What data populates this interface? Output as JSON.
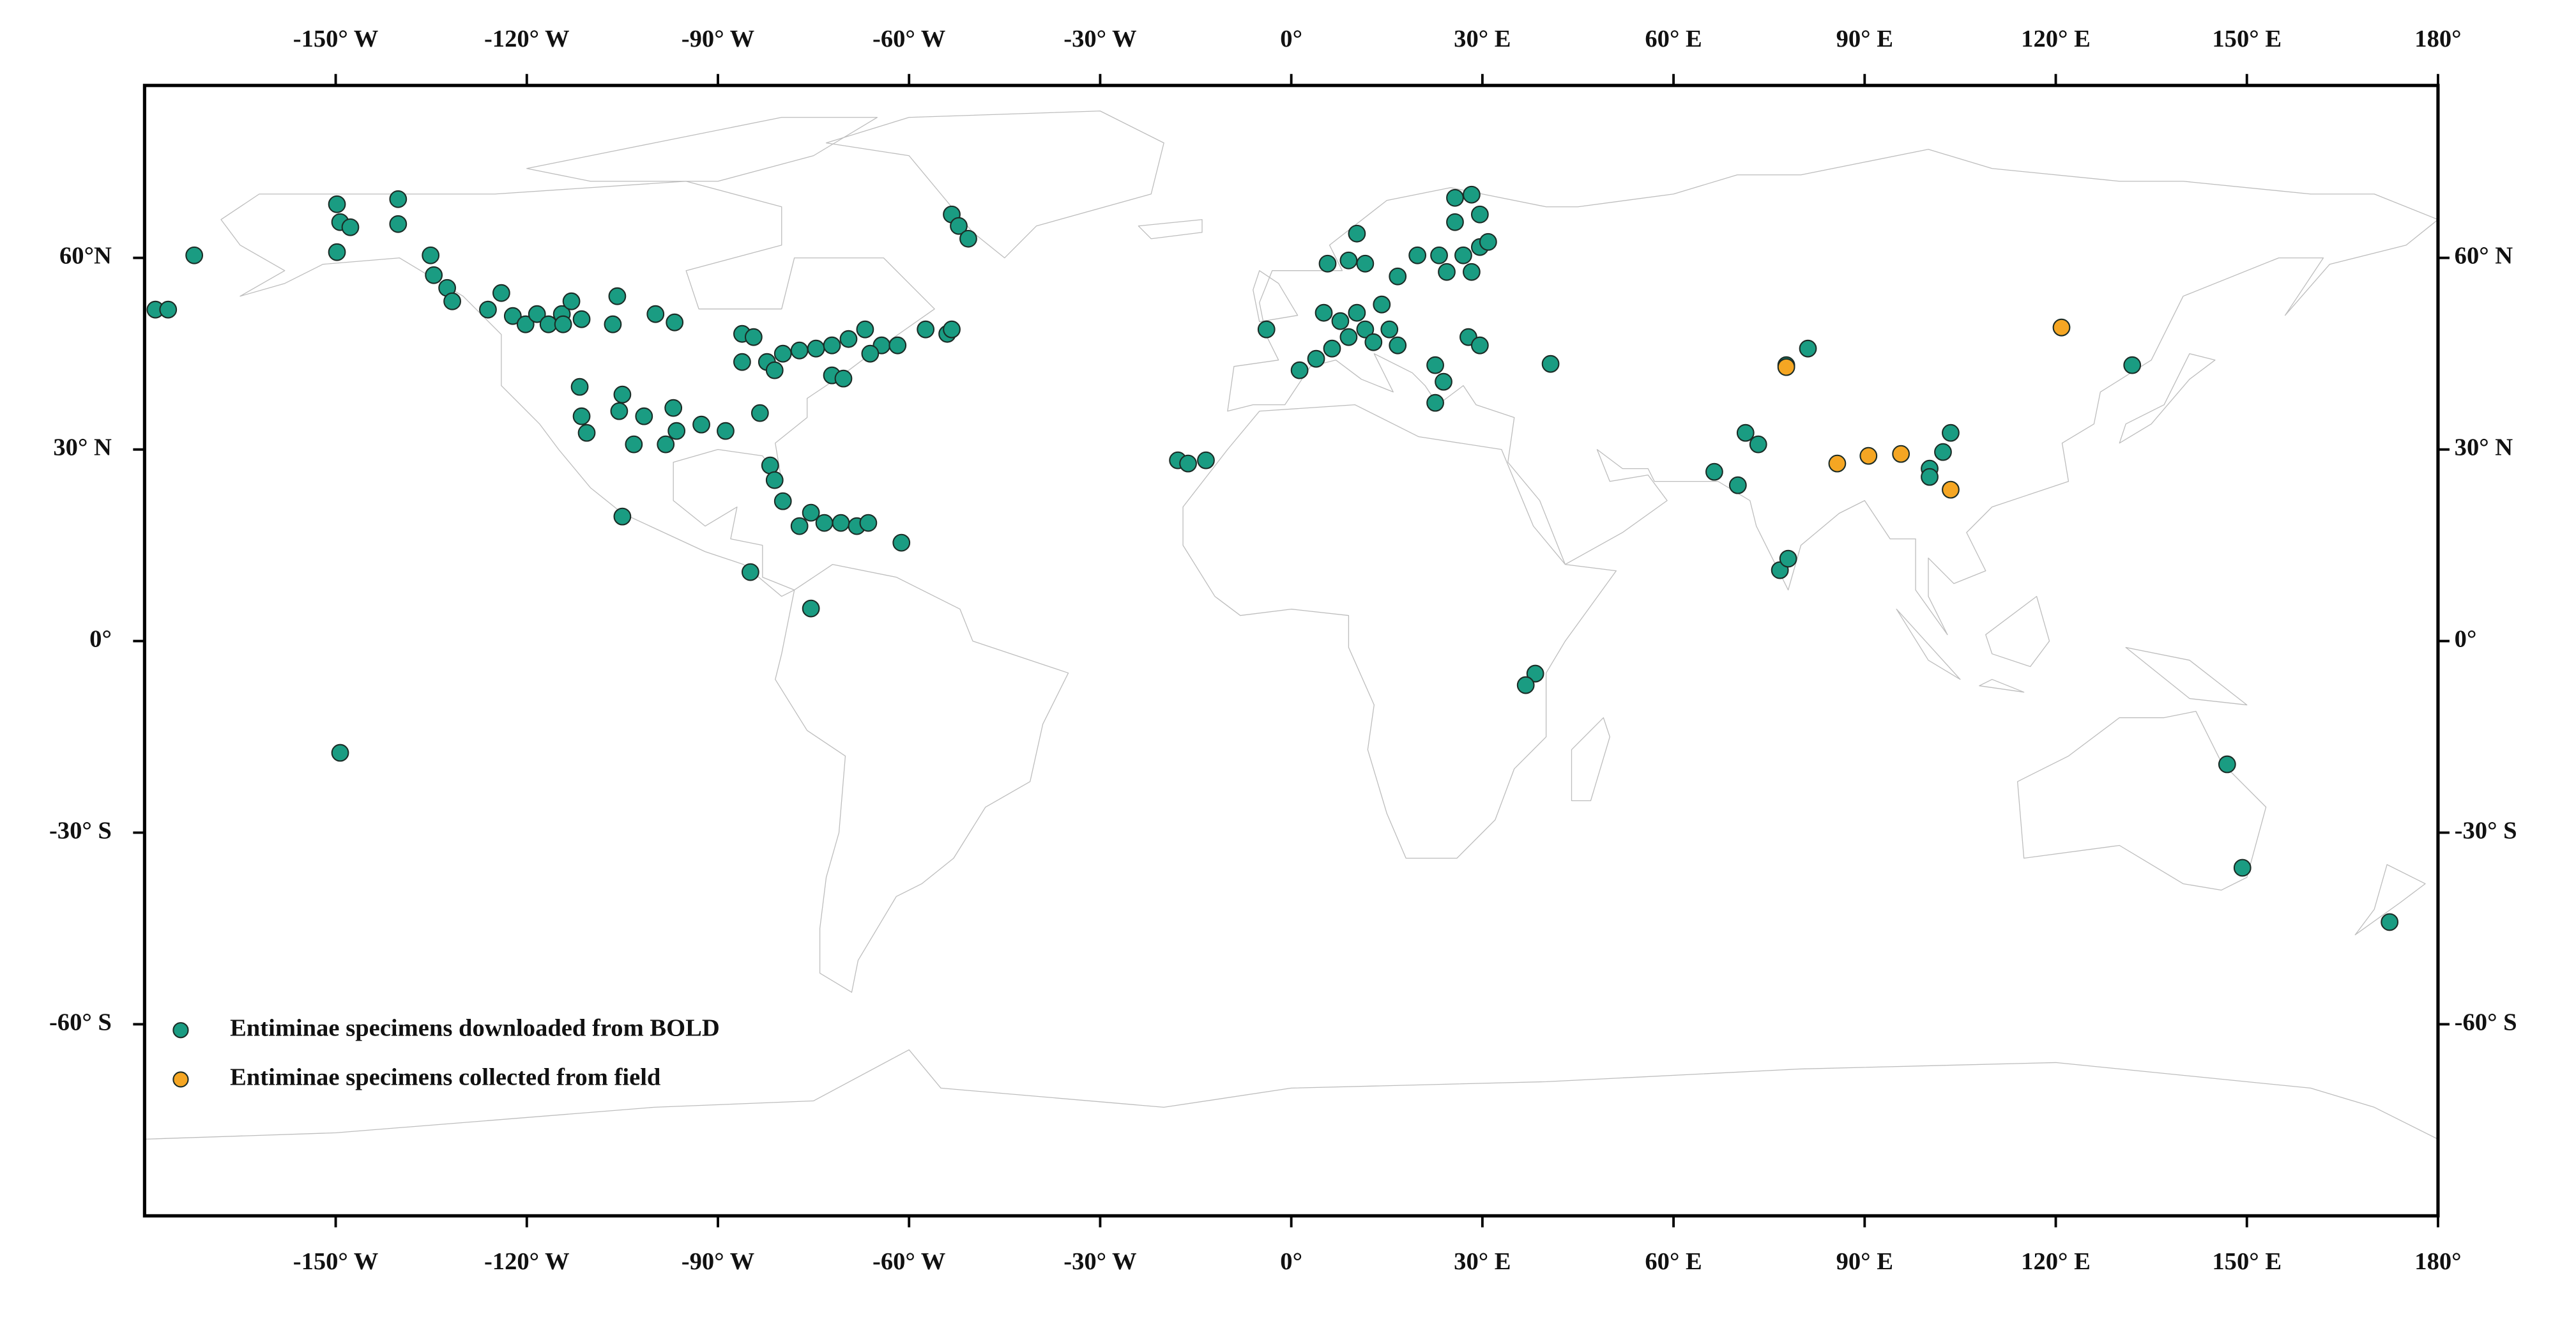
{
  "chart_data": {
    "type": "scatter",
    "xlim": [
      -180,
      180
    ],
    "ylim": [
      -90,
      87
    ],
    "y2lim": [
      -90,
      87
    ],
    "xticks": [
      {
        "value": -150,
        "label": "-150° W"
      },
      {
        "value": -120,
        "label": "-120° W"
      },
      {
        "value": -90,
        "label": "-90° W"
      },
      {
        "value": -60,
        "label": "-60° W"
      },
      {
        "value": -30,
        "label": "-30° W"
      },
      {
        "value": 0,
        "label": "0°"
      },
      {
        "value": 30,
        "label": "30° E"
      },
      {
        "value": 60,
        "label": "60° E"
      },
      {
        "value": 90,
        "label": "90° E"
      },
      {
        "value": 120,
        "label": "120° E"
      },
      {
        "value": 150,
        "label": "150° E"
      },
      {
        "value": 180,
        "label": "180°"
      }
    ],
    "yticks": [
      {
        "value": 60,
        "label": "60°N"
      },
      {
        "value": 30,
        "label": "30° N"
      },
      {
        "value": 0,
        "label": "0°"
      },
      {
        "value": -30,
        "label": "-30° S"
      },
      {
        "value": -60,
        "label": "-60° S"
      }
    ],
    "y2ticks": [
      {
        "value": 60,
        "label": "60° N"
      },
      {
        "value": 30,
        "label": "30° N"
      },
      {
        "value": 0,
        "label": "0°"
      },
      {
        "value": -30,
        "label": "-30° S"
      },
      {
        "value": -60,
        "label": "-60° S"
      }
    ],
    "legend": "lower left",
    "series": [
      {
        "name": "Entiminae specimens downloaded from BOLD",
        "color": "#1a9c82",
        "x": [
          -178.3,
          -176.3,
          -172.2,
          -149.8,
          -149.8,
          -149.3,
          -147.7,
          -140.2,
          -140.2,
          -135.1,
          -134.6,
          -132.5,
          -131.7,
          -126.1,
          -124.0,
          -122.2,
          -120.2,
          -118.4,
          -116.6,
          -114.5,
          -113.0,
          -111.4,
          -114.3,
          -106.5,
          -105.8,
          -99.8,
          -96.8,
          -111.7,
          -111.4,
          -110.6,
          -105.0,
          -105.5,
          -101.6,
          -97.0,
          -103.2,
          -98.2,
          -96.5,
          -92.6,
          -88.8,
          -83.4,
          -105.0,
          -86.2,
          -84.4,
          -86.2,
          -82.3,
          -79.8,
          -77.2,
          -74.6,
          -72.1,
          -69.5,
          -66.9,
          -64.3,
          -61.8,
          -66.1,
          -72.1,
          -70.3,
          -57.4,
          -54.0,
          -53.3,
          -81.1,
          -53.3,
          -52.2,
          -50.7,
          -81.8,
          -81.1,
          -79.8,
          -77.2,
          -75.4,
          -73.3,
          -70.7,
          -68.2,
          -66.4,
          -61.2,
          -84.9,
          -75.4,
          -149.3,
          -17.8,
          -16.2,
          -13.4,
          -3.9,
          1.3,
          3.9,
          6.4,
          7.7,
          5.1,
          10.3,
          11.6,
          12.9,
          14.2,
          9.0,
          15.4,
          16.7,
          5.7,
          9.0,
          11.6,
          10.3,
          16.7,
          19.8,
          23.2,
          27.0,
          29.6,
          30.9,
          25.7,
          28.3,
          25.7,
          29.6,
          24.4,
          28.3,
          27.8,
          29.6,
          22.6,
          23.9,
          22.6,
          40.7,
          77.7,
          81.1,
          71.3,
          73.3,
          66.4,
          70.1,
          76.7,
          78.0,
          100.2,
          100.2,
          102.3,
          103.5,
          132.0,
          146.9,
          149.3,
          172.4,
          38.3,
          36.8
        ],
        "values": [
          51.9,
          51.9,
          60.4,
          68.4,
          60.9,
          65.6,
          64.8,
          69.2,
          65.3,
          60.4,
          57.3,
          55.3,
          53.2,
          51.9,
          54.5,
          50.9,
          49.6,
          51.2,
          49.6,
          51.2,
          53.2,
          50.4,
          49.6,
          49.6,
          54.0,
          51.2,
          49.9,
          39.8,
          35.2,
          32.6,
          38.6,
          36.0,
          35.2,
          36.5,
          30.8,
          30.8,
          32.9,
          33.9,
          32.9,
          35.7,
          19.5,
          48.1,
          47.6,
          43.7,
          43.7,
          45.0,
          45.5,
          45.8,
          46.3,
          47.3,
          48.8,
          46.3,
          46.3,
          45.0,
          41.6,
          41.1,
          48.8,
          48.1,
          48.8,
          42.4,
          66.8,
          65.0,
          63.0,
          27.5,
          25.2,
          21.9,
          18.0,
          20.1,
          18.5,
          18.5,
          18.0,
          18.5,
          15.4,
          10.8,
          5.1,
          -17.5,
          28.3,
          27.8,
          28.3,
          48.8,
          42.4,
          44.2,
          45.8,
          50.1,
          51.4,
          51.4,
          48.8,
          46.8,
          52.7,
          47.6,
          48.8,
          46.3,
          59.1,
          59.6,
          59.1,
          63.8,
          57.1,
          60.4,
          60.4,
          60.4,
          61.7,
          62.5,
          69.4,
          69.9,
          65.6,
          66.8,
          57.8,
          57.8,
          47.6,
          46.3,
          43.2,
          40.6,
          37.3,
          43.4,
          43.2,
          45.8,
          32.6,
          30.8,
          26.5,
          24.4,
          11.1,
          12.9,
          27.0,
          25.7,
          29.6,
          32.6,
          43.2,
          -19.3,
          -35.5,
          -44.0,
          -5.1,
          -6.9
        ]
      },
      {
        "name": "Entiminae specimens collected from field",
        "color": "#f5a623",
        "x": [
          77.7,
          85.7,
          90.6,
          95.7,
          103.5,
          120.9
        ],
        "values": [
          42.9,
          27.8,
          29.0,
          29.3,
          23.7,
          49.1
        ]
      }
    ]
  }
}
